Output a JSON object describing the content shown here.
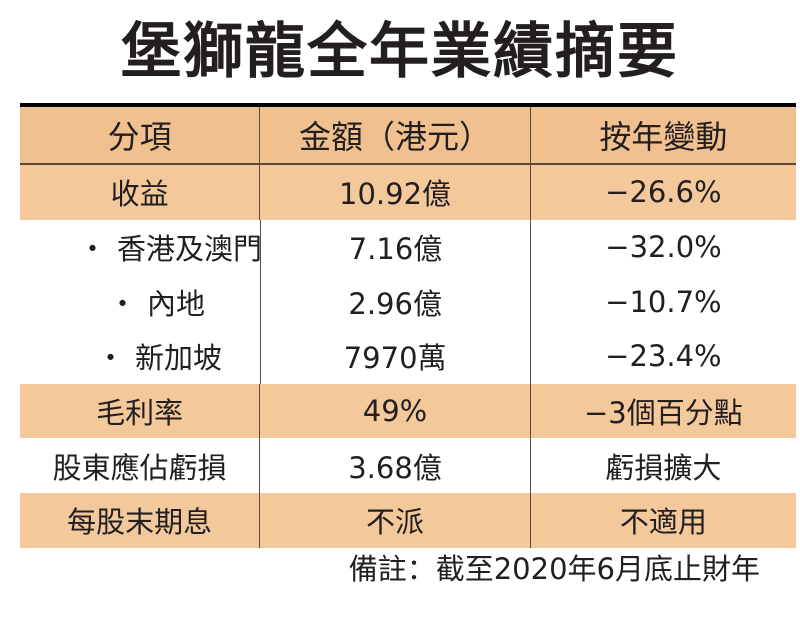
{
  "title": "堡獅龍全年業績摘要",
  "headers": [
    "分項",
    "金額（港元）",
    "按年變動"
  ],
  "rows": [
    {
      "item": "收益",
      "amount": "10.92億",
      "change": "−26.6%"
    },
    {
      "bullet": "・",
      "item": "香港及澳門",
      "amount": "7.16億",
      "change": "−32.0%"
    },
    {
      "bullet": "・",
      "item": "內地",
      "amount": "2.96億",
      "change": "−10.7%"
    },
    {
      "bullet": "・",
      "item": "新加坡",
      "amount": "7970萬",
      "change": "−23.4%"
    },
    {
      "item": "毛利率",
      "amount": "49%",
      "change": "−3個百分點"
    },
    {
      "item": "股東應佔虧損",
      "amount": "3.68億",
      "change": "虧損擴大"
    },
    {
      "item": "每股末期息",
      "amount": "不派",
      "change": "不適用"
    }
  ],
  "note": "備註：截至2020年6月底止財年",
  "colors": {
    "tan": "#f3c99b",
    "header_tan": "#f0c08e",
    "text": "#231f20"
  }
}
